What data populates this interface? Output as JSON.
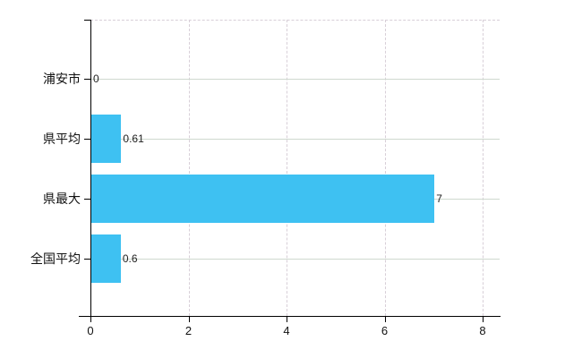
{
  "chart_data": {
    "type": "bar",
    "orientation": "horizontal",
    "title": "",
    "xlabel": "",
    "ylabel": "",
    "categories": [
      "浦安市",
      "県平均",
      "県最大",
      "全国平均"
    ],
    "values": [
      0,
      0.61,
      7,
      0.6
    ],
    "value_labels": [
      "0",
      "0.61",
      "7",
      "0.6"
    ],
    "xlim": [
      0,
      8
    ],
    "xticks": [
      0,
      2,
      4,
      6,
      8
    ],
    "xtick_labels": [
      "0",
      "2",
      "4",
      "6",
      "8"
    ],
    "grid": true,
    "legend": false,
    "colors": {
      "bar_fill": "#3ec1f2",
      "horizontal_gridline": "#cfd9cf",
      "vertical_gridline": "#d8cfd8",
      "axis": "#000000",
      "category_label": "#111111",
      "tick_label": "#111111",
      "value_label": "#222222",
      "background": "#ffffff"
    }
  }
}
